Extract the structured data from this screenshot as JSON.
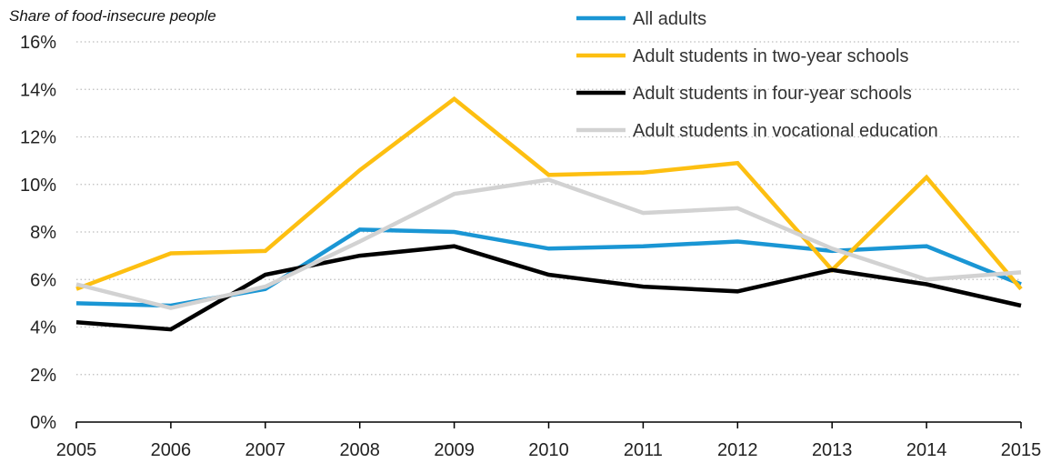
{
  "chart_data": {
    "type": "line",
    "title": "",
    "ylabel": "Share of food-insecure people",
    "xlabel": "",
    "x": [
      "2005",
      "2006",
      "2007",
      "2008",
      "2009",
      "2010",
      "2011",
      "2012",
      "2013",
      "2014",
      "2015"
    ],
    "yticks": [
      "0%",
      "2%",
      "4%",
      "6%",
      "8%",
      "10%",
      "12%",
      "14%",
      "16%"
    ],
    "ylim": [
      0,
      16
    ],
    "grid": "horizontal dotted",
    "legend_position": "top-right",
    "series": [
      {
        "name": "All adults",
        "color": "#1a96d4",
        "values": [
          5.0,
          4.9,
          5.6,
          8.1,
          8.0,
          7.3,
          7.4,
          7.6,
          7.2,
          7.4,
          5.8
        ]
      },
      {
        "name": "Adult students in two-year schools",
        "color": "#fdbf11",
        "values": [
          5.6,
          7.1,
          7.2,
          10.6,
          13.6,
          10.4,
          10.5,
          10.9,
          6.4,
          10.3,
          5.6
        ]
      },
      {
        "name": "Adult students in four-year schools",
        "color": "#000000",
        "values": [
          4.2,
          3.9,
          6.2,
          7.0,
          7.4,
          6.2,
          5.7,
          5.5,
          6.4,
          5.8,
          4.9
        ]
      },
      {
        "name": "Adult students in vocational education",
        "color": "#d2d2d2",
        "values": [
          5.8,
          4.8,
          5.7,
          7.6,
          9.6,
          10.2,
          8.8,
          9.0,
          7.3,
          6.0,
          6.3
        ]
      }
    ]
  }
}
